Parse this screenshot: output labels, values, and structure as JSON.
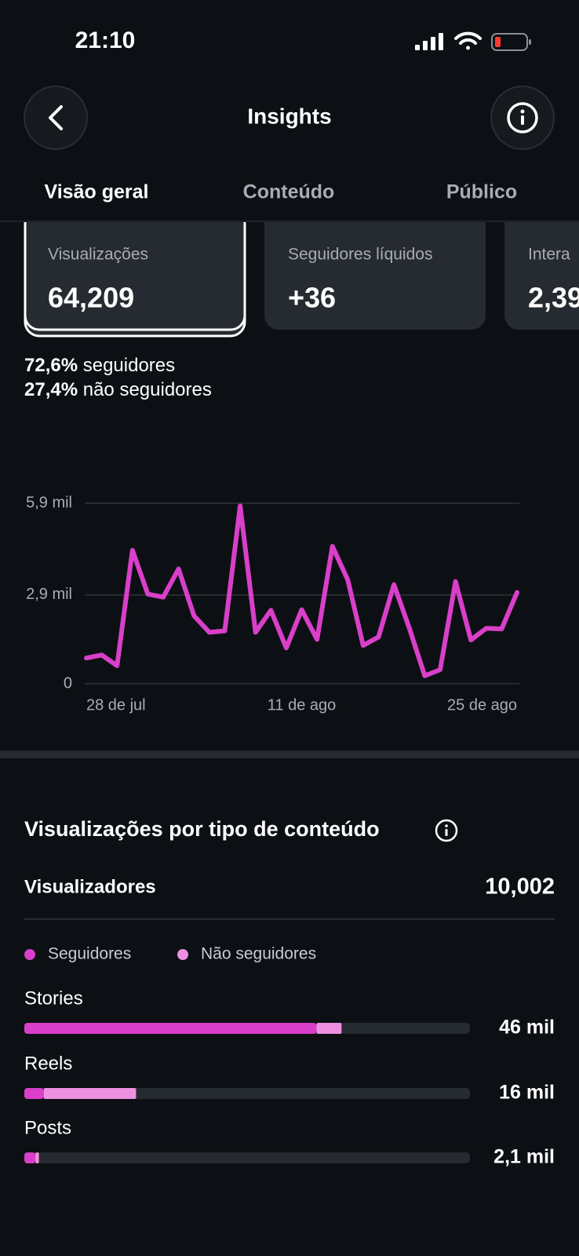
{
  "status_bar": {
    "time": "21:10"
  },
  "header": {
    "title": "Insights"
  },
  "tabs": [
    "Visão geral",
    "Conteúdo",
    "Público"
  ],
  "cards": [
    {
      "label": "Visualizações",
      "value": "64,209"
    },
    {
      "label": "Seguidores líquidos",
      "value": "+36"
    },
    {
      "label": "Intera",
      "value": "2,39"
    }
  ],
  "audience_split": [
    {
      "share": "72,6%",
      "label": "seguidores"
    },
    {
      "share": "27,4%",
      "label": "não seguidores"
    }
  ],
  "viewers": {
    "label": "Visualizadores",
    "value": "10,002"
  },
  "bar_totals": [
    "46 mil",
    "16 mil",
    "2,1 mil"
  ],
  "chart_data": [
    {
      "type": "line",
      "categories": [
        "28 de jul",
        null,
        null,
        null,
        null,
        null,
        null,
        null,
        null,
        null,
        null,
        null,
        null,
        null,
        "11 de ago",
        null,
        null,
        null,
        null,
        null,
        null,
        null,
        null,
        null,
        null,
        null,
        null,
        null,
        "25 de ago"
      ],
      "series": [
        {
          "name": "Visualizações",
          "color": "#d93fc8",
          "values": [
            840,
            940,
            590,
            4360,
            2930,
            2830,
            3750,
            2220,
            1680,
            1730,
            5810,
            1680,
            2400,
            1170,
            2420,
            1450,
            4490,
            3390,
            1250,
            1530,
            3240,
            1810,
            260,
            460,
            3340,
            1430,
            1810,
            1790,
            2980
          ]
        }
      ],
      "ylim": [
        0,
        5900
      ],
      "yticks": [
        0,
        {
          "value": 2900,
          "label": "2,9 mil"
        },
        {
          "value": 5900,
          "label": "5,9 mil"
        }
      ],
      "grid": true
    },
    {
      "type": "stacked-bar",
      "title": "Visualizações por tipo de conteúdo",
      "categories": [
        "Stories",
        "Reels",
        "Posts"
      ],
      "series": [
        {
          "name": "Seguidores",
          "color": "#d93fc8",
          "values": [
            42.1,
            2.8,
            1.6
          ]
        },
        {
          "name": "Não seguidores",
          "color": "#ef8fe0",
          "values": [
            3.6,
            13.3,
            0.5
          ]
        }
      ],
      "xlim": [
        0,
        64.2
      ]
    }
  ]
}
